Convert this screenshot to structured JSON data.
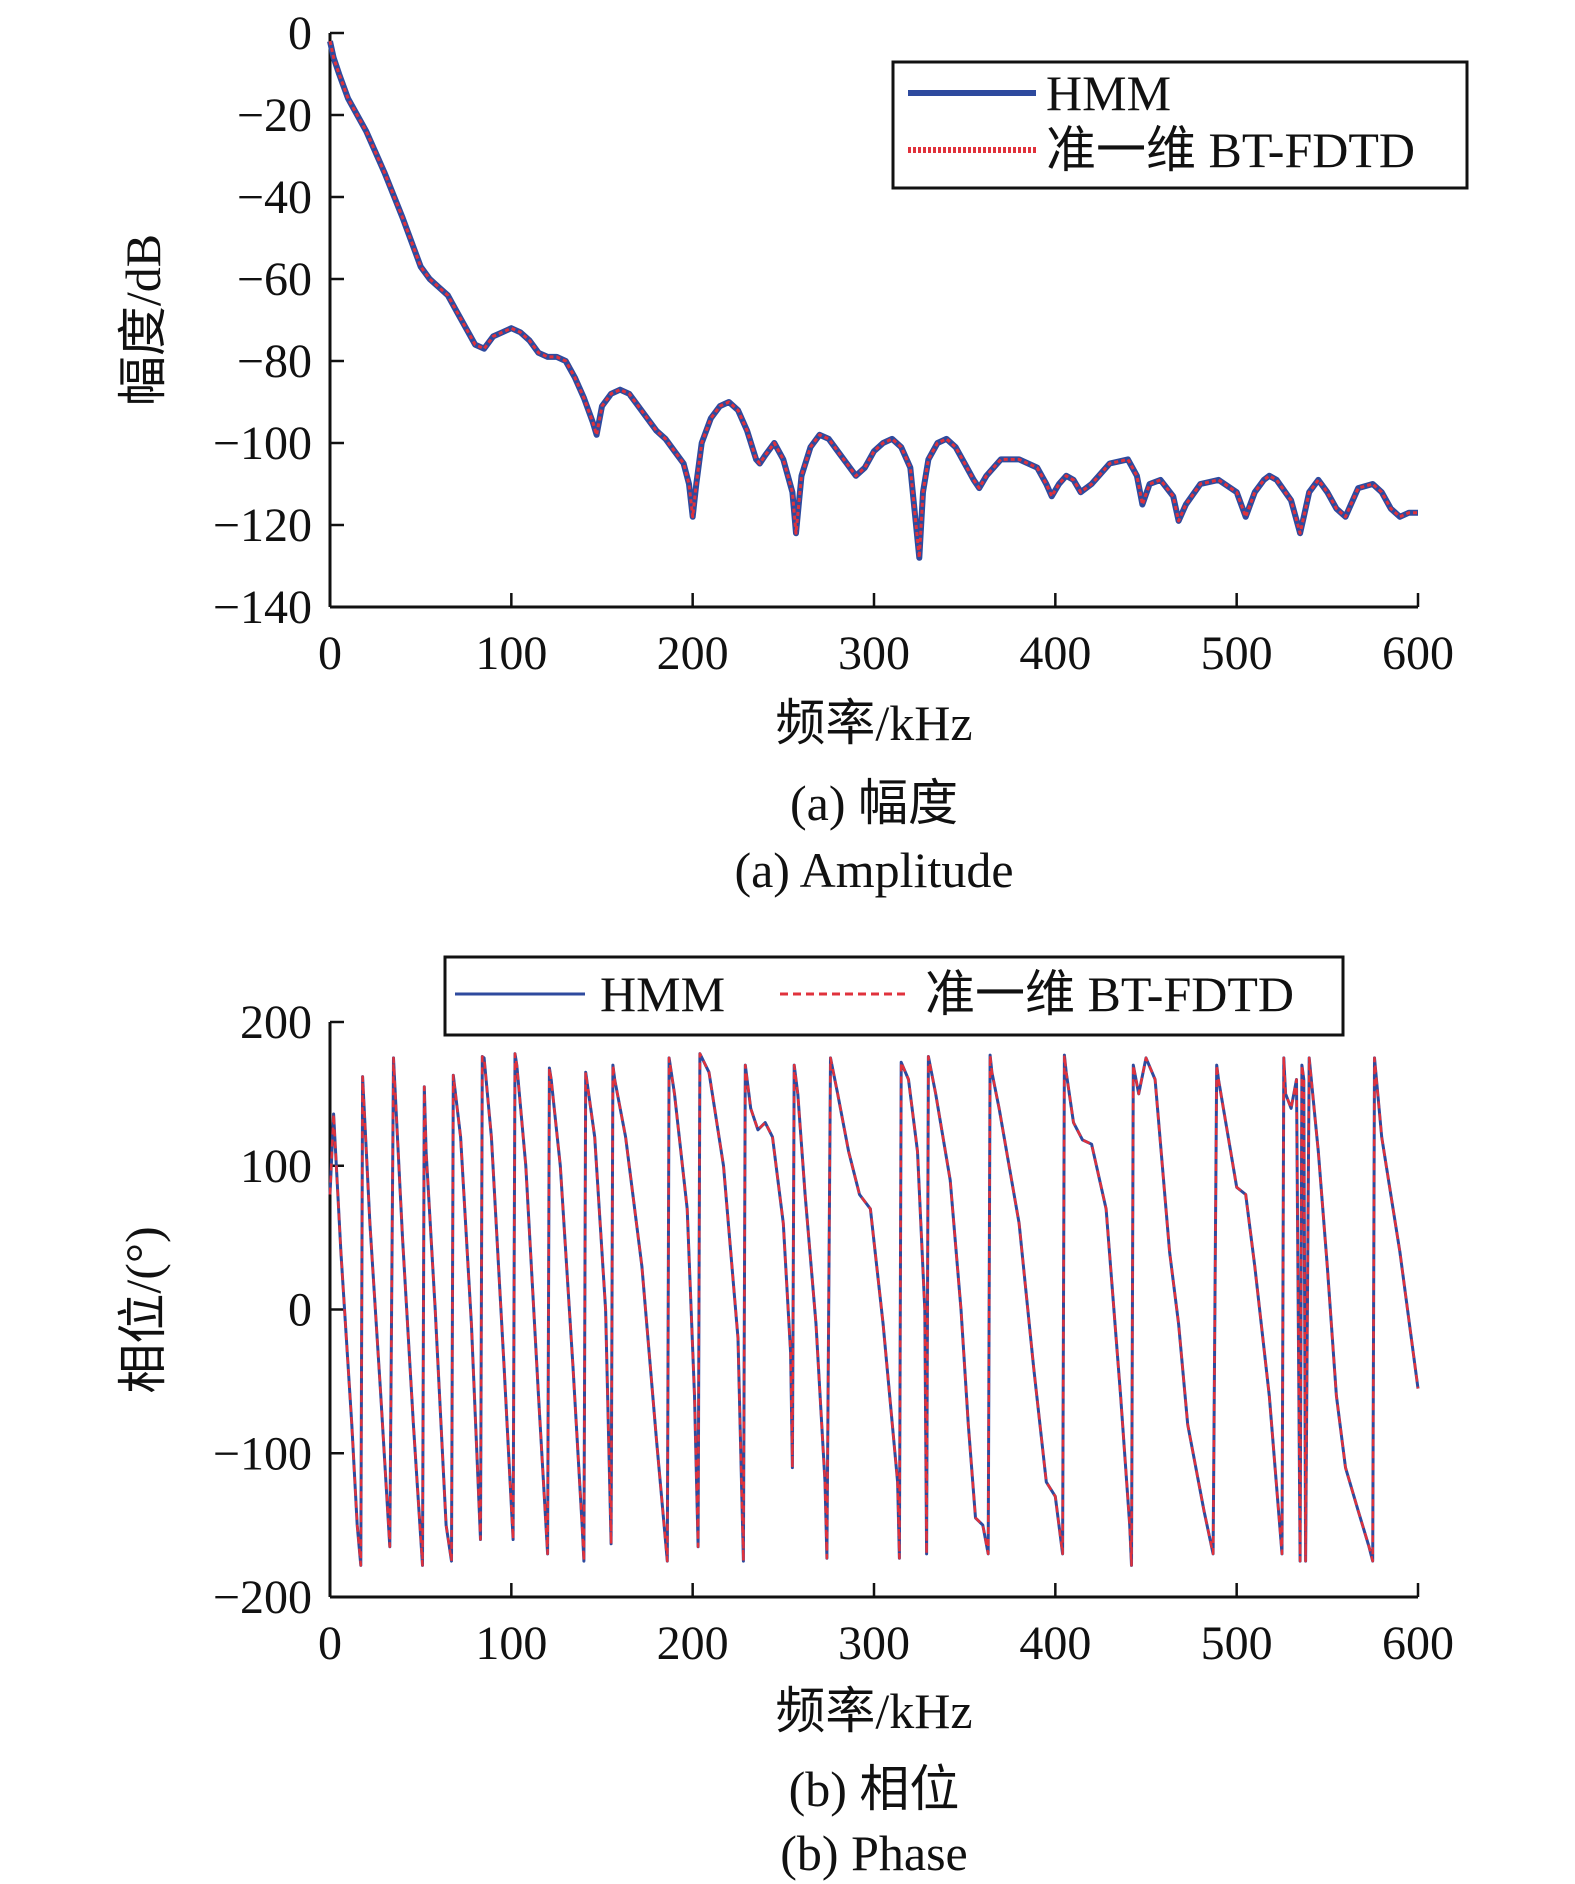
{
  "colors": {
    "hmm": "#2e4a9e",
    "bt": "#e0323c",
    "axis": "#111111"
  },
  "chart_data": [
    {
      "type": "line",
      "panel": "a",
      "xlabel": "频率/kHz",
      "ylabel": "幅度/dB",
      "xlim": [
        0,
        600
      ],
      "ylim": [
        -140,
        0
      ],
      "xticks": [
        "0",
        "100",
        "200",
        "300",
        "400",
        "500",
        "600"
      ],
      "yticks": [
        "0",
        "−20",
        "−40",
        "−60",
        "−80",
        "−100",
        "−120",
        "−140"
      ],
      "caption_cn": "(a) 幅度",
      "caption_en": "(a) Amplitude",
      "legend_position": "top-right",
      "series": [
        {
          "name": "HMM",
          "style": "solid"
        },
        {
          "name": "准一维 BT-FDTD",
          "style": "dotted"
        }
      ],
      "x": [
        0,
        2,
        5,
        10,
        15,
        20,
        30,
        40,
        50,
        55,
        60,
        65,
        70,
        75,
        80,
        85,
        90,
        95,
        100,
        105,
        110,
        115,
        120,
        125,
        130,
        135,
        140,
        145,
        147,
        150,
        155,
        160,
        165,
        170,
        175,
        180,
        185,
        190,
        195,
        198,
        200,
        202,
        205,
        210,
        215,
        220,
        225,
        230,
        235,
        237,
        240,
        245,
        250,
        255,
        257,
        260,
        265,
        270,
        275,
        280,
        285,
        290,
        295,
        300,
        305,
        310,
        315,
        320,
        325,
        327,
        330,
        335,
        340,
        345,
        350,
        355,
        358,
        362,
        370,
        380,
        390,
        395,
        398,
        402,
        406,
        410,
        414,
        420,
        430,
        440,
        445,
        448,
        452,
        458,
        465,
        468,
        472,
        480,
        490,
        500,
        505,
        510,
        515,
        518,
        522,
        530,
        535,
        537,
        540,
        545,
        550,
        555,
        560,
        563,
        567,
        575,
        580,
        585,
        590,
        595,
        600
      ],
      "y": [
        -2,
        -6,
        -10,
        -16,
        -20,
        -24,
        -34,
        -45,
        -57,
        -60,
        -62,
        -64,
        -68,
        -72,
        -76,
        -77,
        -74,
        -73,
        -72,
        -73,
        -75,
        -78,
        -79,
        -79,
        -80,
        -84,
        -89,
        -95,
        -98,
        -91,
        -88,
        -87,
        -88,
        -91,
        -94,
        -97,
        -99,
        -102,
        -105,
        -110,
        -118,
        -110,
        -100,
        -94,
        -91,
        -90,
        -92,
        -97,
        -104,
        -105,
        -103,
        -100,
        -104,
        -112,
        -122,
        -108,
        -101,
        -98,
        -99,
        -102,
        -105,
        -108,
        -106,
        -102,
        -100,
        -99,
        -101,
        -106,
        -128,
        -112,
        -104,
        -100,
        -99,
        -101,
        -105,
        -109,
        -111,
        -108,
        -104,
        -104,
        -106,
        -110,
        -113,
        -110,
        -108,
        -109,
        -112,
        -110,
        -105,
        -104,
        -108,
        -115,
        -110,
        -109,
        -113,
        -119,
        -115,
        -110,
        -109,
        -112,
        -118,
        -112,
        -109,
        -108,
        -109,
        -114,
        -122,
        -118,
        -112,
        -109,
        -112,
        -116,
        -118,
        -115,
        -111,
        -110,
        -112,
        -116,
        -118,
        -117,
        -117
      ]
    },
    {
      "type": "line",
      "panel": "b",
      "xlabel": "频率/kHz",
      "ylabel": "相位/(°)",
      "xlim": [
        0,
        600
      ],
      "ylim": [
        -200,
        200
      ],
      "xticks": [
        "0",
        "100",
        "200",
        "300",
        "400",
        "500",
        "600"
      ],
      "yticks": [
        "200",
        "100",
        "0",
        "−100",
        "−200"
      ],
      "caption_cn": "(b) 相位",
      "caption_en": "(b) Phase",
      "legend_position": "top",
      "series": [
        {
          "name": "HMM",
          "style": "solid"
        },
        {
          "name": "准一维 BT-FDTD",
          "style": "dashed"
        }
      ],
      "x": [
        0,
        2,
        6,
        12,
        15,
        17,
        18,
        22,
        28,
        33,
        35,
        36,
        40,
        46,
        51,
        52,
        53,
        58,
        64,
        67,
        68,
        72,
        78,
        83,
        84,
        85,
        89,
        96,
        101,
        102,
        103,
        108,
        115,
        120,
        121,
        122,
        127,
        134,
        139,
        140,
        141,
        146,
        152,
        155,
        156,
        157,
        163,
        172,
        180,
        186,
        187,
        190,
        197,
        201,
        203,
        204,
        209,
        217,
        225,
        228,
        229,
        232,
        236,
        240,
        244,
        250,
        254,
        255,
        256,
        258,
        262,
        268,
        273,
        274,
        276,
        280,
        286,
        292,
        298,
        305,
        313,
        314,
        315,
        319,
        324,
        328,
        329,
        330,
        334,
        342,
        348,
        352,
        356,
        360,
        363,
        364,
        365,
        369,
        380,
        388,
        395,
        400,
        404,
        405,
        406,
        410,
        415,
        420,
        428,
        436,
        441,
        442,
        443,
        446,
        450,
        455,
        463,
        468,
        473,
        482,
        487,
        489,
        490,
        494,
        500,
        505,
        510,
        518,
        525,
        526,
        527,
        530,
        533,
        535,
        536,
        537,
        538,
        540,
        545,
        550,
        555,
        560,
        567,
        573,
        575,
        576,
        580,
        590,
        600
      ],
      "y": [
        80,
        136,
        40,
        -80,
        -150,
        -178,
        162,
        60,
        -60,
        -165,
        175,
        150,
        50,
        -80,
        -178,
        155,
        110,
        0,
        -150,
        -175,
        163,
        120,
        -10,
        -160,
        176,
        175,
        120,
        -40,
        -160,
        178,
        170,
        100,
        -60,
        -170,
        168,
        160,
        100,
        -40,
        -150,
        -175,
        165,
        120,
        0,
        -163,
        170,
        160,
        120,
        30,
        -90,
        -175,
        175,
        150,
        70,
        -60,
        -165,
        178,
        165,
        100,
        -20,
        -175,
        170,
        140,
        125,
        130,
        120,
        60,
        -30,
        -110,
        170,
        150,
        80,
        -10,
        -120,
        -173,
        175,
        150,
        110,
        80,
        70,
        -10,
        -120,
        -173,
        172,
        160,
        110,
        0,
        -170,
        176,
        150,
        90,
        0,
        -80,
        -145,
        -150,
        -170,
        177,
        165,
        140,
        60,
        -40,
        -120,
        -130,
        -170,
        177,
        165,
        130,
        118,
        115,
        70,
        -60,
        -150,
        -178,
        170,
        150,
        175,
        160,
        40,
        -10,
        -80,
        -140,
        -170,
        170,
        160,
        130,
        85,
        80,
        30,
        -60,
        -170,
        175,
        150,
        140,
        160,
        -175,
        170,
        160,
        -175,
        175,
        110,
        30,
        -60,
        -110,
        -140,
        -165,
        -175,
        175,
        120,
        40,
        -55
      ]
    }
  ]
}
